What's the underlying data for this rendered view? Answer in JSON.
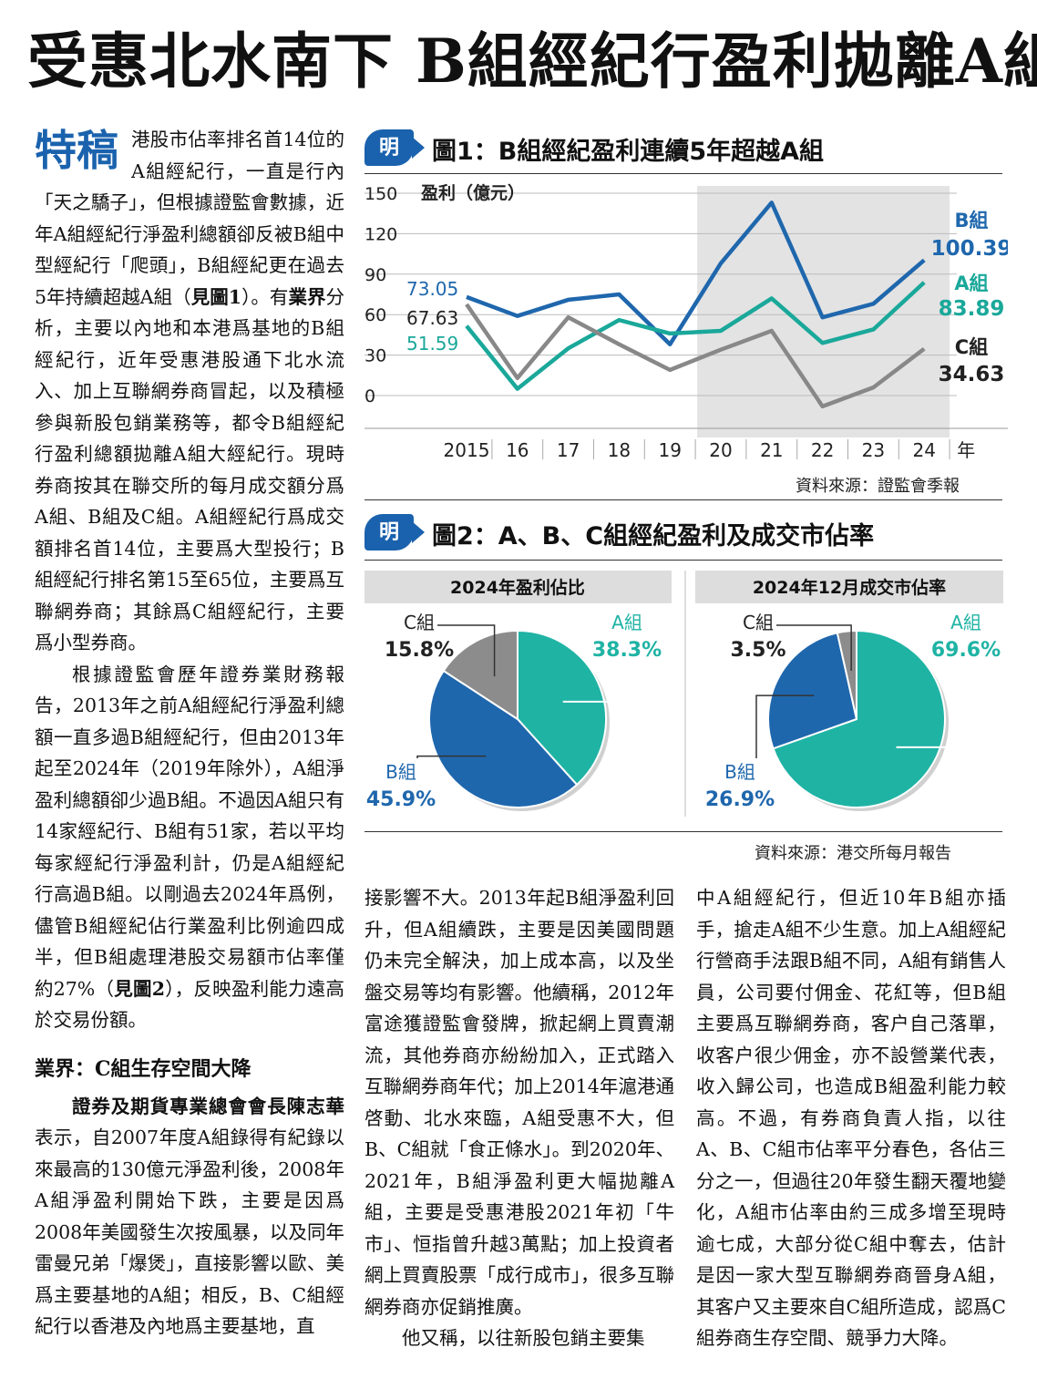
{
  "headline": "受惠北水南下 B組經紀行盈利拋離A組",
  "article": {
    "tag": "特稿",
    "col1_p1": "港股市佔率排名首14位的A組經紀行，一直是行內「天之驕子」，但根據證監會數據，近年A組經紀行淨盈利總額卻反被B組中型經紀行「爬頭」，B組經紀更在過去5年持續超越A組（",
    "col1_p1_ref": "見圖1",
    "col1_p1_b": "）。有",
    "col1_p1_bold": "業界",
    "col1_p1_c": "分析，主要以內地和本港爲基地的B組經紀行，近年受惠港股通下北水流入、加上互聯網券商冒起，以及積極參與新股包銷業務等，都令B組經紀行盈利總額拋離A組大經紀行。現時券商按其在聯交所的每月成交額分爲A組、B組及C組。A組經紀行爲成交額排名首14位，主要爲大型投行；B組經紀行排名第15至65位，主要爲互聯網券商；其餘爲C組經紀行，主要爲小型券商。",
    "col1_p2": "根據證監會歷年證券業財務報告，2013年之前A組經紀行淨盈利總額一直多過B組經紀行，但由2013年起至2024年（2019年除外），A組淨盈利總額卻少過B組。不過因A組只有14家經紀行、B組有51家，若以平均每家經紀行淨盈利計，仍是A組經紀行高過B組。以剛過去2024年爲例，儘管B組經紀佔行業盈利比例逾四成半，但B組處理港股交易額市佔率僅約27%（",
    "col1_p2_ref": "見圖2",
    "col1_p2_b": "），反映盈利能力遠高於交易份額。",
    "subhead": "業界：C組生存空間大降",
    "col1_p3_bold": "證券及期貨專業總會會長陳志華",
    "col1_p3": "表示，自2007年度A組錄得有紀錄以來最高的130億元淨盈利後，2008年A組淨盈利開始下跌，主要是因爲2008年美國發生次按風暴，以及同年雷曼兄弟「爆煲」，直接影響以歐、美爲主要基地的A組；相反，B、C組經紀行以香港及內地爲主要基地，直",
    "col2_p1": "接影響不大。2013年起B組淨盈利回升，但A組續跌，主要是因美國問題仍未完全解決，加上成本高，以及坐盤交易等均有影響。他續稱，2012年富途獲證監會發牌，掀起網上買賣潮流，其他券商亦紛紛加入，正式踏入互聯網券商年代；加上2014年滬港通啓動、北水來臨，A組受惠不大，但B、C組就「食正條水」。到2020年、2021年，B組淨盈利更大幅拋離A組，主要是受惠港股2021年初「牛市」、恒指曾升越3萬點；加上投資者網上買賣股票「成行成市」，很多互聯網券商亦促銷推廣。",
    "col2_p2": "他又稱，以往新股包銷主要集",
    "col3_p1": "中A組經紀行，但近10年B組亦插手，搶走A組不少生意。加上A組經紀行營商手法跟B組不同，A組有銷售人員，公司要付佣金、花紅等，但B組主要爲互聯網券商，客户自己落單，收客户很少佣金，亦不設營業代表，收入歸公司，也造成B組盈利能力較高。不過，有券商負責人指，以往A、B、C組市佔率平分春色，各佔三分之一，但過往20年發生翻天覆地變化，A組市佔率由約三成多增至現時逾七成，大部分從C組中奪去，估計是因一家大型互聯網券商晉身A組，其客户又主要來自C組所造成，認爲C組券商生存空間、競爭力大降。"
  },
  "fig1": {
    "badge": "明",
    "title": "圖1：B組經紀盈利連續5年超越A組",
    "source": "資料來源：證監會季報"
  },
  "fig2": {
    "badge": "明",
    "title": "圖2：A、B、C組經紀盈利及成交市佔率",
    "source": "資料來源：港交所每月報告"
  },
  "chart_data": [
    {
      "type": "line",
      "ylabel": "盈利（億元）",
      "xlabel": "年",
      "ylim": [
        0,
        150
      ],
      "yticks": [
        0,
        30,
        60,
        90,
        120,
        150
      ],
      "x": [
        "2015",
        "16",
        "17",
        "18",
        "19",
        "20",
        "21",
        "22",
        "23",
        "24"
      ],
      "shaded_from": "20",
      "series": [
        {
          "name": "B組",
          "color": "#1f67ad",
          "values": [
            73.05,
            59,
            71,
            75,
            38,
            98,
            143,
            58,
            68,
            100.39
          ],
          "start_label": "73.05",
          "end_label": "100.39"
        },
        {
          "name": "A組",
          "color": "#1aa89a",
          "values": [
            51.59,
            5,
            35,
            56,
            46,
            48,
            72,
            39,
            49,
            83.89
          ],
          "start_label": "51.59",
          "end_label": "83.89"
        },
        {
          "name": "C組",
          "color": "#888888",
          "values": [
            67.63,
            13,
            58,
            38,
            19,
            34,
            48,
            -8,
            6,
            34.63
          ],
          "start_label": "67.63",
          "end_label": "34.63"
        }
      ]
    },
    {
      "type": "pie",
      "title": "2024年盈利佔比",
      "slices": [
        {
          "name": "A組",
          "value": 38.3,
          "label": "38.3%",
          "color": "#1fb3a4"
        },
        {
          "name": "B組",
          "value": 45.9,
          "label": "45.9%",
          "color": "#1f67ad"
        },
        {
          "name": "C組",
          "value": 15.8,
          "label": "15.8%",
          "color": "#8c8c8c"
        }
      ]
    },
    {
      "type": "pie",
      "title": "2024年12月成交市佔率",
      "slices": [
        {
          "name": "A組",
          "value": 69.6,
          "label": "69.6%",
          "color": "#1fb3a4"
        },
        {
          "name": "B組",
          "value": 26.9,
          "label": "26.9%",
          "color": "#1f67ad"
        },
        {
          "name": "C組",
          "value": 3.5,
          "label": "3.5%",
          "color": "#8c8c8c"
        }
      ]
    }
  ]
}
